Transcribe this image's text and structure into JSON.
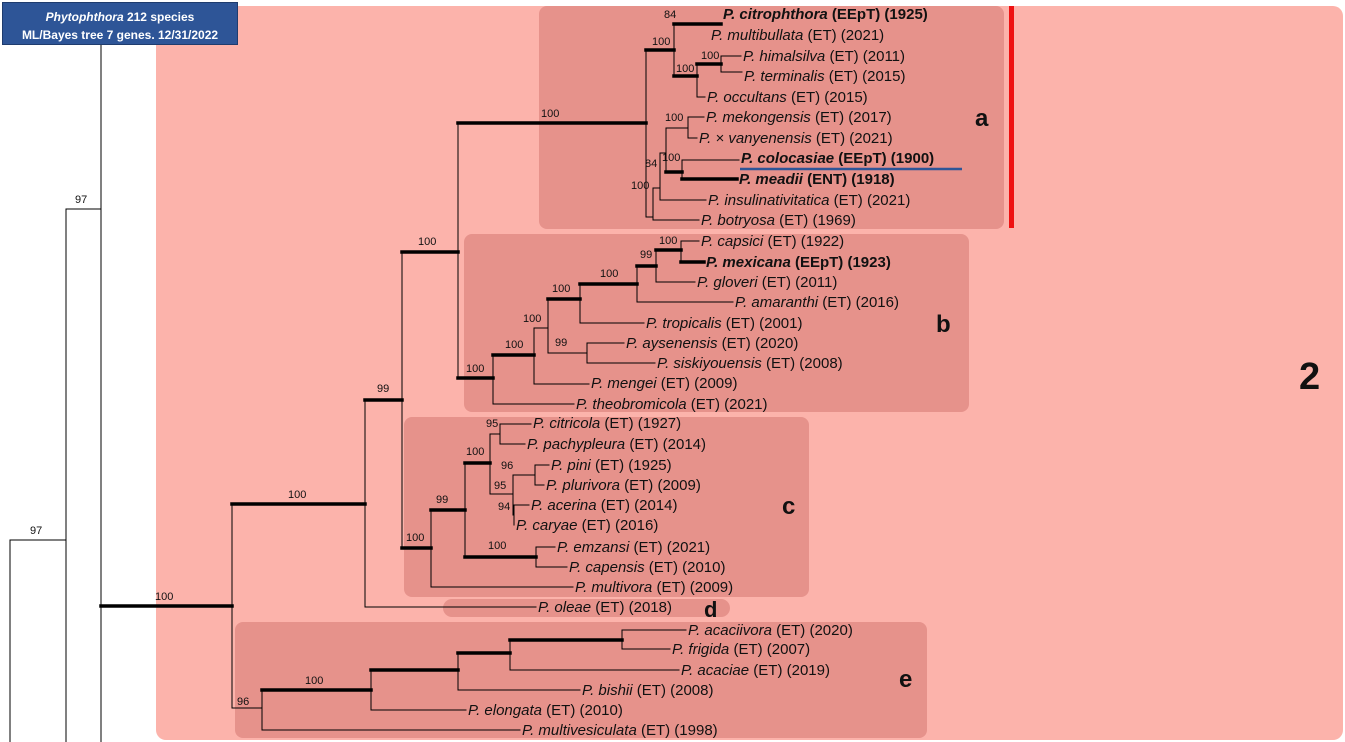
{
  "header": {
    "genus": "Phytophthora",
    "line1_rest": " 212 species",
    "line2": "ML/Bayes tree 7 genes. 12/31/2022"
  },
  "clade_number": "2",
  "clade_letters": [
    "a",
    "b",
    "c",
    "d",
    "e"
  ],
  "colors": {
    "clade_background": "#fcb3ab",
    "subclade_box": "#e6928b",
    "marker_bar": "#ee1111",
    "underline": "#2e5597",
    "header_bg": "#2e5597"
  },
  "taxa": [
    {
      "genus": "P.",
      "epithet": "citrophthora",
      "status": "(EEpT)",
      "year": "(1925)",
      "bold": true
    },
    {
      "genus": "P.",
      "epithet": "multibullata",
      "status": "(ET)",
      "year": "(2021)",
      "bold": false
    },
    {
      "genus": "P.",
      "epithet": "himalsilva",
      "status": "(ET)",
      "year": "(2011)",
      "bold": false
    },
    {
      "genus": "P.",
      "epithet": "terminalis",
      "status": "(ET)",
      "year": "(2015)",
      "bold": false
    },
    {
      "genus": "P.",
      "epithet": "occultans",
      "status": "(ET)",
      "year": "(2015)",
      "bold": false
    },
    {
      "genus": "P.",
      "epithet": "mekongensis",
      "status": "(ET)",
      "year": "(2017)",
      "bold": false
    },
    {
      "genus": "P.",
      "epithet": "× vanyenensis",
      "status": "(ET)",
      "year": "(2021)",
      "bold": false
    },
    {
      "genus": "P.",
      "epithet": "colocasiae",
      "status": "(EEpT)",
      "year": "(1900)",
      "bold": true,
      "underlined": true
    },
    {
      "genus": "P.",
      "epithet": "meadii",
      "status": "(ENT)",
      "year": "(1918)",
      "bold": true
    },
    {
      "genus": "P.",
      "epithet": "insulinativitatica",
      "status": "(ET)",
      "year": "(2021)",
      "bold": false
    },
    {
      "genus": "P.",
      "epithet": "botryosa",
      "status": "(ET)",
      "year": "(1969)",
      "bold": false
    },
    {
      "genus": "P.",
      "epithet": "capsici",
      "status": "(ET)",
      "year": "(1922)",
      "bold": false
    },
    {
      "genus": "P.",
      "epithet": "mexicana",
      "status": "(EEpT)",
      "year": "(1923)",
      "bold": true
    },
    {
      "genus": "P.",
      "epithet": "gloveri",
      "status": "(ET)",
      "year": "(2011)",
      "bold": false
    },
    {
      "genus": "P.",
      "epithet": "amaranthi",
      "status": "(ET)",
      "year": "(2016)",
      "bold": false
    },
    {
      "genus": "P.",
      "epithet": "tropicalis",
      "status": "(ET)",
      "year": "(2001)",
      "bold": false
    },
    {
      "genus": "P.",
      "epithet": "aysenensis",
      "status": "(ET)",
      "year": "(2020)",
      "bold": false
    },
    {
      "genus": "P.",
      "epithet": "siskiyouensis",
      "status": "(ET)",
      "year": "(2008)",
      "bold": false
    },
    {
      "genus": "P.",
      "epithet": "mengei",
      "status": "(ET)",
      "year": "(2009)",
      "bold": false
    },
    {
      "genus": "P.",
      "epithet": "theobromicola",
      "status": "(ET)",
      "year": "(2021)",
      "bold": false
    },
    {
      "genus": "P.",
      "epithet": "citricola",
      "status": "(ET)",
      "year": "(1927)",
      "bold": false
    },
    {
      "genus": "P.",
      "epithet": "pachypleura",
      "status": "(ET)",
      "year": "(2014)",
      "bold": false
    },
    {
      "genus": "P.",
      "epithet": "pini",
      "status": "(ET)",
      "year": "(1925)",
      "bold": false
    },
    {
      "genus": "P.",
      "epithet": "plurivora",
      "status": "(ET)",
      "year": "(2009)",
      "bold": false
    },
    {
      "genus": "P.",
      "epithet": "acerina",
      "status": "(ET)",
      "year": "(2014)",
      "bold": false
    },
    {
      "genus": "P.",
      "epithet": "caryae",
      "status": "(ET)",
      "year": "(2016)",
      "bold": false
    },
    {
      "genus": "P.",
      "epithet": "emzansi",
      "status": "(ET)",
      "year": "(2021)",
      "bold": false
    },
    {
      "genus": "P.",
      "epithet": "capensis",
      "status": "(ET)",
      "year": "(2010)",
      "bold": false
    },
    {
      "genus": "P.",
      "epithet": "multivora",
      "status": "(ET)",
      "year": "(2009)",
      "bold": false
    },
    {
      "genus": "P.",
      "epithet": "oleae",
      "status": "(ET)",
      "year": "(2018)",
      "bold": false
    },
    {
      "genus": "P.",
      "epithet": "acaciivora",
      "status": "(ET)",
      "year": "(2020)",
      "bold": false
    },
    {
      "genus": "P.",
      "epithet": "frigida",
      "status": "(ET)",
      "year": "(2007)",
      "bold": false
    },
    {
      "genus": "P.",
      "epithet": "acaciae",
      "status": "(ET)",
      "year": "(2019)",
      "bold": false
    },
    {
      "genus": "P.",
      "epithet": "bishii",
      "status": "(ET)",
      "year": "(2008)",
      "bold": false
    },
    {
      "genus": "P.",
      "epithet": "elongata",
      "status": "(ET)",
      "year": "(2010)",
      "bold": false
    },
    {
      "genus": "P.",
      "epithet": "multivesiculata",
      "status": "(ET)",
      "year": "(1998)",
      "bold": false
    }
  ],
  "support_values": [
    "97",
    "97",
    "100",
    "100",
    "99",
    "100",
    "100",
    "84",
    "100",
    "100",
    "100",
    "84",
    "100",
    "100",
    "100",
    "100",
    "100",
    "100",
    "99",
    "99",
    "100",
    "100",
    "100",
    "95",
    "96",
    "95",
    "94",
    "100",
    "99",
    "100",
    "100",
    "96",
    "100"
  ]
}
